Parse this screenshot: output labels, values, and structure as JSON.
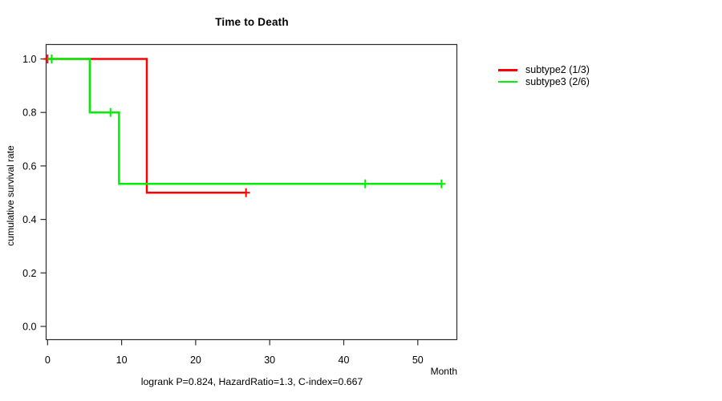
{
  "window": {
    "background": "#ffffff"
  },
  "chart_data": {
    "type": "line",
    "variant": "kaplan-meier-step-survival",
    "title": "Time to Death",
    "xlabel": "Month",
    "ylabel": "cumulative survival rate",
    "footnote": "logrank P=0.824, HazardRatio=1.3, C-index=0.667",
    "xlim": [
      0,
      55
    ],
    "ylim": [
      0,
      1.0
    ],
    "grid": false,
    "legend_position": "right-outside-top",
    "xticks": [
      {
        "value": 0,
        "label": "0"
      },
      {
        "value": 10,
        "label": "10"
      },
      {
        "value": 20,
        "label": "20"
      },
      {
        "value": 30,
        "label": "30"
      },
      {
        "value": 40,
        "label": "40"
      },
      {
        "value": 50,
        "label": "50"
      }
    ],
    "yticks": [
      {
        "value": 0.0,
        "label": "0.0"
      },
      {
        "value": 0.2,
        "label": "0.2"
      },
      {
        "value": 0.4,
        "label": "0.4"
      },
      {
        "value": 0.6,
        "label": "0.6"
      },
      {
        "value": 0.8,
        "label": "0.8"
      },
      {
        "value": 1.0,
        "label": "1.0"
      }
    ],
    "series": [
      {
        "name": "subtype2 (1/3)",
        "color": "#ff0000",
        "steps": [
          [
            0,
            1.0
          ],
          [
            13.4,
            1.0
          ],
          [
            13.4,
            0.5
          ],
          [
            26.8,
            0.5
          ]
        ],
        "censor_marks": [
          [
            0,
            1.0
          ],
          [
            26.8,
            0.5
          ]
        ]
      },
      {
        "name": "subtype3 (2/6)",
        "color": "#00ee00",
        "steps": [
          [
            0,
            1.0
          ],
          [
            5.7,
            1.0
          ],
          [
            5.7,
            0.8
          ],
          [
            9.65,
            0.8
          ],
          [
            9.65,
            0.533
          ],
          [
            53.2,
            0.533
          ]
        ],
        "censor_marks": [
          [
            0.55,
            1.0
          ],
          [
            8.5,
            0.8
          ],
          [
            42.9,
            0.533
          ],
          [
            53.2,
            0.533
          ]
        ]
      }
    ],
    "axis_color": "#2b2b2b"
  }
}
